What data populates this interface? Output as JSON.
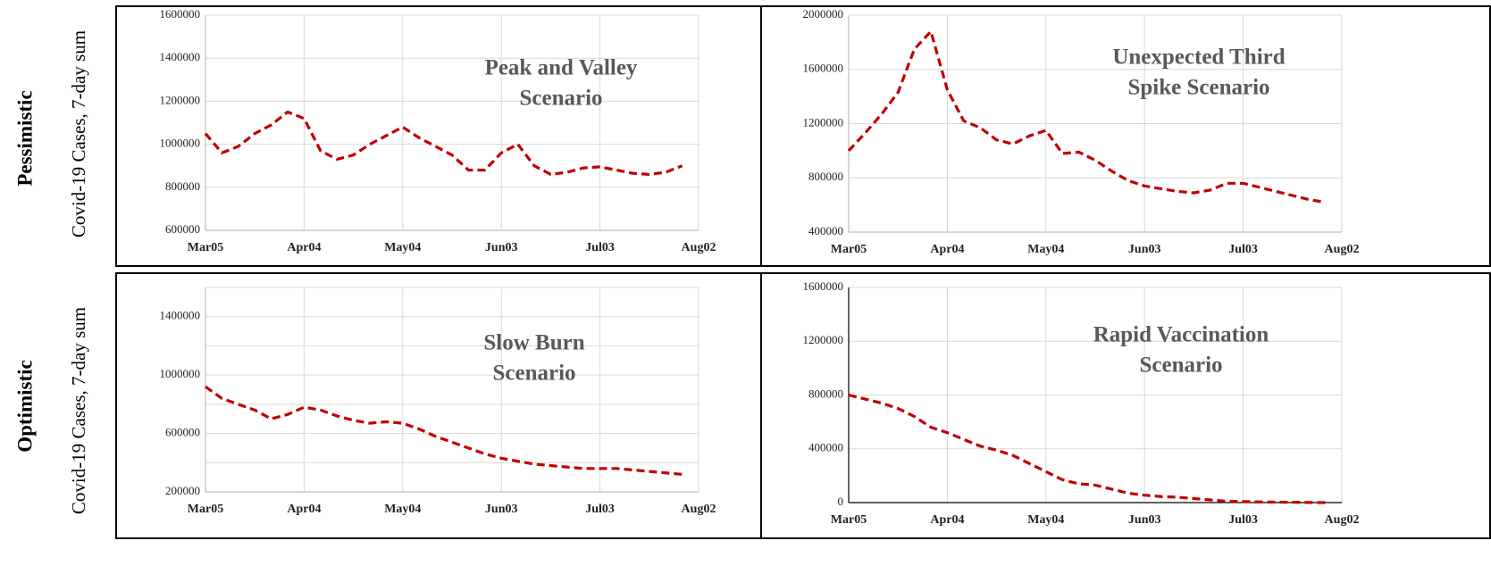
{
  "rows": [
    {
      "label": "Pessimistic",
      "ylabel": "Covid-19 Cases, 7-day sum"
    },
    {
      "label": "Optimistic",
      "ylabel": "Covid-19 Cases, 7-day sum"
    }
  ],
  "chart_data": [
    {
      "type": "line",
      "title": [
        "Peak and Valley",
        "Scenario"
      ],
      "x": [
        0,
        5,
        10,
        15,
        20,
        25,
        30,
        35,
        40,
        45,
        50,
        55,
        60,
        65,
        70,
        75,
        80,
        85,
        90,
        95,
        100,
        105,
        110,
        115,
        120,
        125,
        130,
        135,
        140,
        145
      ],
      "series": [
        {
          "color": "#c00000",
          "values": [
            1050000,
            960000,
            990000,
            1050000,
            1090000,
            1150000,
            1120000,
            970000,
            930000,
            950000,
            1000000,
            1040000,
            1080000,
            1030000,
            990000,
            950000,
            880000,
            880000,
            960000,
            1000000,
            900000,
            860000,
            870000,
            890000,
            895000,
            880000,
            865000,
            860000,
            870000,
            900000
          ]
        }
      ],
      "xlim": [
        0,
        150
      ],
      "xticks": [
        {
          "value": 0,
          "label": "Mar05"
        },
        {
          "value": 30,
          "label": "Apr04"
        },
        {
          "value": 60,
          "label": "May04"
        },
        {
          "value": 90,
          "label": "Jun03"
        },
        {
          "value": 120,
          "label": "Jul03"
        },
        {
          "value": 150,
          "label": "Aug02"
        }
      ],
      "ylim": [
        600000,
        1600000
      ],
      "yticks": [
        600000,
        800000,
        1000000,
        1200000,
        1400000,
        1600000
      ],
      "grid": true
    },
    {
      "type": "line",
      "title": [
        "Unexpected Third",
        "Spike Scenario"
      ],
      "x": [
        0,
        5,
        10,
        15,
        20,
        25,
        30,
        35,
        40,
        45,
        50,
        55,
        60,
        65,
        70,
        75,
        80,
        85,
        90,
        95,
        100,
        105,
        110,
        115,
        120,
        125,
        130,
        135,
        140,
        145
      ],
      "series": [
        {
          "color": "#c00000",
          "values": [
            1000000,
            1130000,
            1270000,
            1430000,
            1750000,
            1880000,
            1450000,
            1220000,
            1170000,
            1080000,
            1050000,
            1110000,
            1150000,
            980000,
            990000,
            930000,
            850000,
            780000,
            740000,
            720000,
            700000,
            690000,
            710000,
            760000,
            760000,
            730000,
            700000,
            670000,
            640000,
            620000
          ]
        }
      ],
      "xlim": [
        0,
        150
      ],
      "xticks": [
        {
          "value": 0,
          "label": "Mar05"
        },
        {
          "value": 30,
          "label": "Apr04"
        },
        {
          "value": 60,
          "label": "May04"
        },
        {
          "value": 90,
          "label": "Jun03"
        },
        {
          "value": 120,
          "label": "Jul03"
        },
        {
          "value": 150,
          "label": "Aug02"
        }
      ],
      "ylim": [
        400000,
        2000000
      ],
      "yticks": [
        400000,
        800000,
        1200000,
        1600000,
        2000000
      ],
      "grid": true
    },
    {
      "type": "line",
      "title": [
        "Slow Burn",
        "Scenario"
      ],
      "x": [
        0,
        5,
        10,
        15,
        20,
        25,
        30,
        35,
        40,
        45,
        50,
        55,
        60,
        65,
        70,
        75,
        80,
        85,
        90,
        95,
        100,
        105,
        110,
        115,
        120,
        125,
        130,
        135,
        140,
        145
      ],
      "series": [
        {
          "color": "#c00000",
          "values": [
            920000,
            840000,
            800000,
            760000,
            700000,
            730000,
            780000,
            760000,
            720000,
            690000,
            670000,
            680000,
            670000,
            630000,
            580000,
            540000,
            500000,
            460000,
            430000,
            410000,
            390000,
            380000,
            370000,
            360000,
            360000,
            360000,
            350000,
            340000,
            330000,
            320000
          ]
        }
      ],
      "xlim": [
        0,
        150
      ],
      "xticks": [
        {
          "value": 0,
          "label": "Mar05"
        },
        {
          "value": 30,
          "label": "Apr04"
        },
        {
          "value": 60,
          "label": "May04"
        },
        {
          "value": 90,
          "label": "Jun03"
        },
        {
          "value": 120,
          "label": "Jul03"
        },
        {
          "value": 150,
          "label": "Aug02"
        }
      ],
      "ylim": [
        200000,
        1600000
      ],
      "yticks": [
        200000,
        600000,
        1000000,
        1400000
      ],
      "minor_yticks": [
        400000,
        800000,
        1200000,
        1600000
      ],
      "grid": true
    },
    {
      "type": "line",
      "title": [
        "Rapid Vaccination",
        "Scenario"
      ],
      "x": [
        0,
        5,
        10,
        15,
        20,
        25,
        30,
        35,
        40,
        45,
        50,
        55,
        60,
        65,
        70,
        75,
        80,
        85,
        90,
        95,
        100,
        105,
        110,
        115,
        120,
        125,
        130,
        135,
        140,
        145
      ],
      "series": [
        {
          "color": "#c00000",
          "values": [
            800000,
            770000,
            740000,
            700000,
            640000,
            560000,
            520000,
            470000,
            420000,
            390000,
            350000,
            290000,
            230000,
            170000,
            140000,
            130000,
            100000,
            70000,
            55000,
            45000,
            40000,
            30000,
            20000,
            10000,
            8000,
            5000,
            3000,
            2000,
            1000,
            0
          ]
        }
      ],
      "xlim": [
        0,
        150
      ],
      "xticks": [
        {
          "value": 0,
          "label": "Mar05"
        },
        {
          "value": 30,
          "label": "Apr04"
        },
        {
          "value": 60,
          "label": "May04"
        },
        {
          "value": 90,
          "label": "Jun03"
        },
        {
          "value": 120,
          "label": "Jul03"
        },
        {
          "value": 150,
          "label": "Aug02"
        }
      ],
      "ylim": [
        0,
        1600000
      ],
      "yticks": [
        0,
        400000,
        800000,
        1200000,
        1600000
      ],
      "grid": true
    }
  ]
}
